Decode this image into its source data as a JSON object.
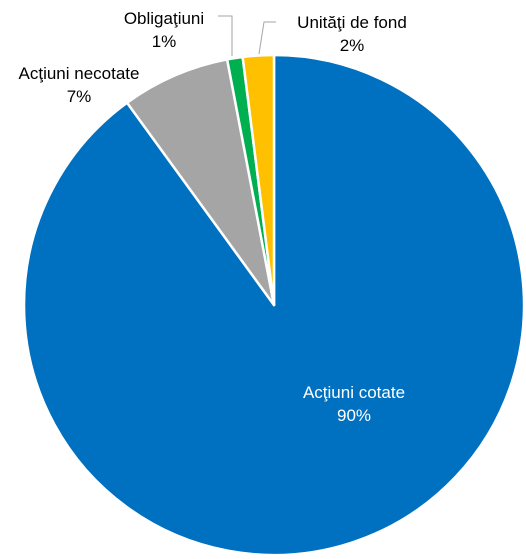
{
  "chart_data": {
    "type": "pie",
    "slices": [
      {
        "label": "Acţiuni cotate",
        "value": 90,
        "display": "90%",
        "color": "#0070C0"
      },
      {
        "label": "Acţiuni necotate",
        "value": 7,
        "display": "7%",
        "color": "#A5A5A5"
      },
      {
        "label": "Obligaţiuni",
        "value": 1,
        "display": "1%",
        "color": "#00B050"
      },
      {
        "label": "Unităţi de fond",
        "value": 2,
        "display": "2%",
        "color": "#FFC000"
      }
    ],
    "start": "12 o'clock",
    "direction": "clockwise",
    "legend": "none"
  }
}
